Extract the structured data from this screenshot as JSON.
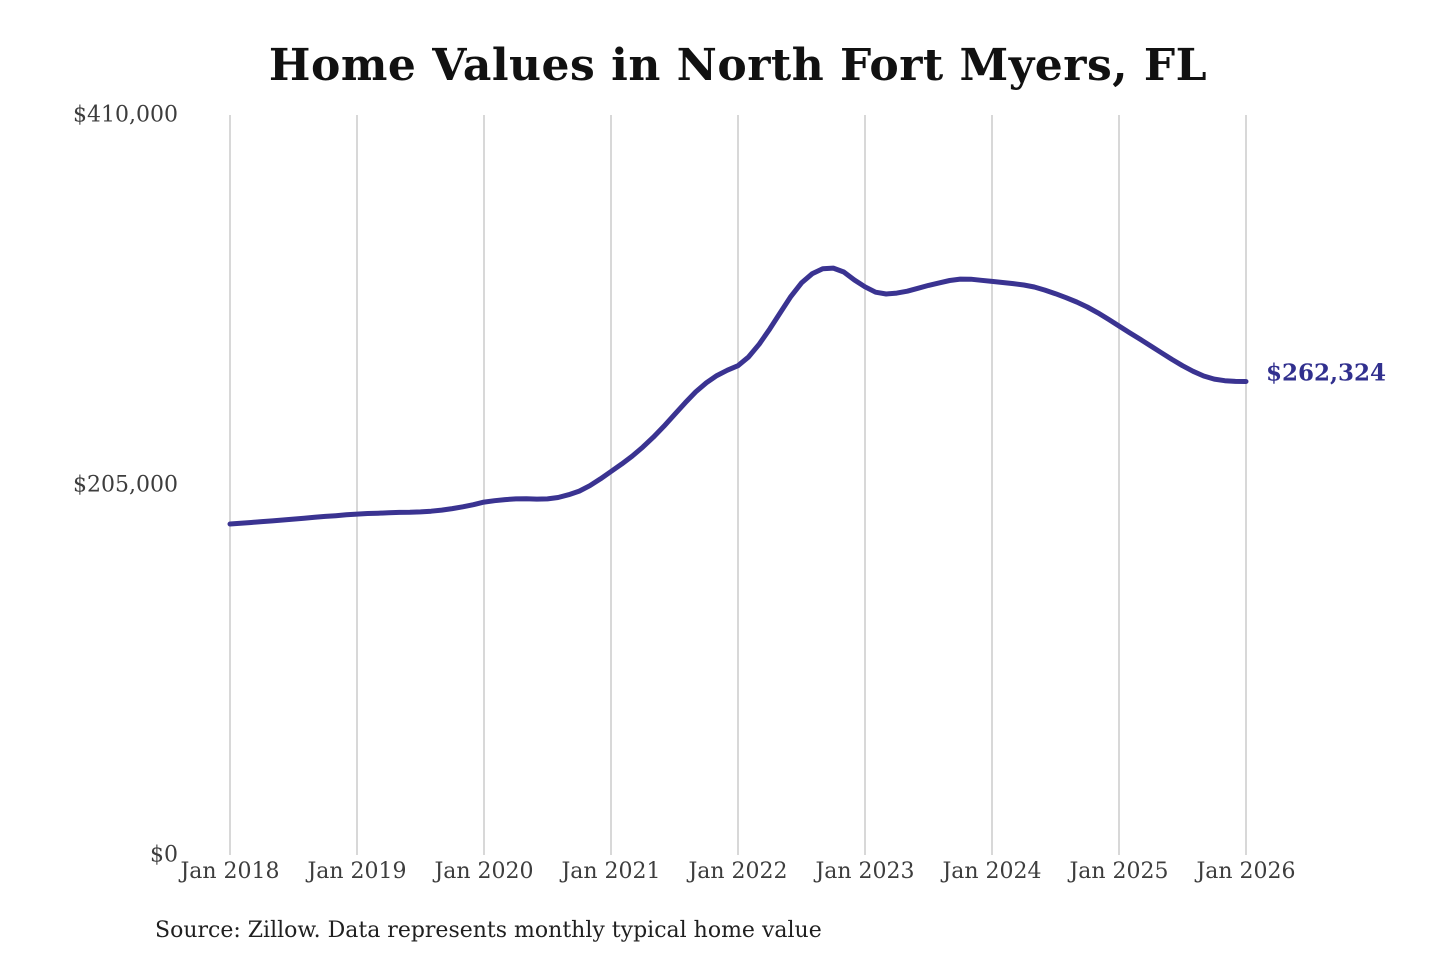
{
  "title": "Home Values in North Fort Myers, FL",
  "source_note": "Source: Zillow. Data represents monthly typical home value",
  "end_label": "$262,324",
  "colors": {
    "background": "#ffffff",
    "line": "#3a3391",
    "grid": "#cccccc",
    "tick_text": "#3d3d3d",
    "title_text": "#111111",
    "end_label_text": "#31308e",
    "source_text": "#1f1f1f"
  },
  "chart_data": {
    "type": "line",
    "title": "Home Values in North Fort Myers, FL",
    "xlabel": "",
    "ylabel": "",
    "x_unit": "month",
    "x_start": "Jan 2018",
    "x_end": "Jan 2026",
    "x_tick_labels": [
      "Jan 2018",
      "Jan 2019",
      "Jan 2020",
      "Jan 2021",
      "Jan 2022",
      "Jan 2023",
      "Jan 2024",
      "Jan 2025",
      "Jan 2026"
    ],
    "y_ticks": [
      {
        "value": 0,
        "label": "$0"
      },
      {
        "value": 205000,
        "label": "$205,000"
      },
      {
        "value": 410000,
        "label": "$410,000"
      }
    ],
    "ylim": [
      0,
      410000
    ],
    "grid": "vertical",
    "legend": "none",
    "annotation": {
      "text": "$262,324",
      "value": 262324,
      "position": "line-end"
    },
    "series": [
      {
        "name": "Monthly typical home value",
        "start": "2018-01",
        "end": "2026-01",
        "values": [
          183400,
          183800,
          184200,
          184700,
          185100,
          185600,
          186100,
          186600,
          187100,
          187600,
          188000,
          188500,
          188900,
          189200,
          189400,
          189600,
          189800,
          189900,
          190100,
          190500,
          191100,
          191900,
          192900,
          194100,
          195500,
          196300,
          196900,
          197300,
          197400,
          197200,
          197300,
          198100,
          199600,
          201600,
          204600,
          208400,
          212500,
          216600,
          221000,
          226000,
          231500,
          237500,
          244000,
          250500,
          256600,
          261600,
          265600,
          268600,
          271100,
          276000,
          283000,
          291500,
          300500,
          309500,
          317000,
          322000,
          324800,
          325200,
          323000,
          318600,
          314800,
          311800,
          310800,
          311300,
          312400,
          314000,
          315600,
          317000,
          318300,
          319100,
          319000,
          318400,
          317800,
          317200,
          316600,
          315800,
          314700,
          313000,
          311000,
          308800,
          306400,
          303600,
          300400,
          296800,
          293100,
          289400,
          285700,
          282000,
          278300,
          274600,
          271100,
          268000,
          265400,
          263700,
          262800,
          262400,
          262324
        ]
      }
    ]
  }
}
